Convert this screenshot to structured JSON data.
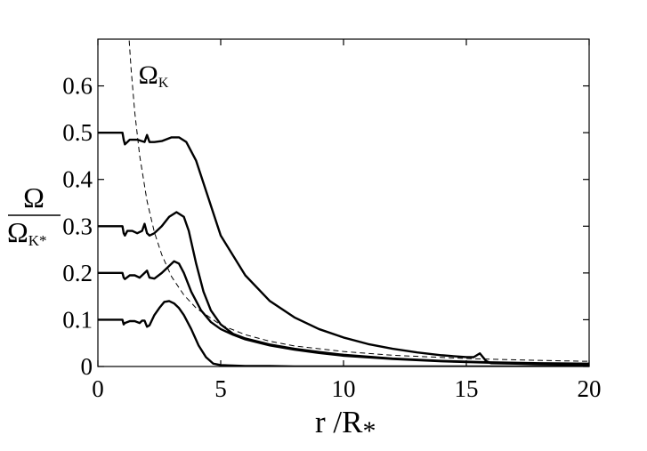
{
  "chart_data": {
    "type": "line",
    "title": "",
    "xlabel": "r /R",
    "xlabel_sub": "*",
    "ylabel_numerator": "Ω",
    "ylabel_denominator": "Ω",
    "ylabel_denominator_sub": "K*",
    "xlim": [
      0,
      20
    ],
    "ylim": [
      0,
      0.7
    ],
    "xticks": [
      "0",
      "5",
      "10",
      "15",
      "20"
    ],
    "yticks": [
      "0",
      "0.1",
      "0.2",
      "0.3",
      "0.4",
      "0.5",
      "0.6"
    ],
    "grid": false,
    "annotation": {
      "text": "Ω",
      "sub": "K",
      "x": 1.65,
      "y": 0.605
    },
    "series": [
      {
        "name": "",
        "style": "solid",
        "x": [
          0,
          1.0,
          1.05,
          1.1,
          1.2,
          1.3,
          1.6,
          1.9,
          2.0,
          2.1,
          2.3,
          2.6,
          3.0,
          3.3,
          3.6,
          4.0,
          4.5,
          5.0,
          6.0,
          7.0,
          8.0,
          9.0,
          10.0,
          11.0,
          12.0,
          13.0,
          14.0,
          15.0,
          15.3,
          15.55,
          15.8,
          16.0,
          17.0,
          18.0,
          19.0,
          20.0
        ],
        "y": [
          0.5,
          0.5,
          0.485,
          0.475,
          0.48,
          0.485,
          0.485,
          0.48,
          0.495,
          0.48,
          0.48,
          0.482,
          0.49,
          0.49,
          0.48,
          0.44,
          0.36,
          0.28,
          0.195,
          0.14,
          0.105,
          0.08,
          0.062,
          0.048,
          0.038,
          0.03,
          0.024,
          0.02,
          0.02,
          0.028,
          0.012,
          0.007,
          0.006,
          0.005,
          0.004,
          0.004
        ]
      },
      {
        "name": "",
        "style": "solid",
        "x": [
          0,
          1.0,
          1.05,
          1.1,
          1.2,
          1.4,
          1.6,
          1.8,
          1.9,
          2.0,
          2.1,
          2.3,
          2.6,
          2.9,
          3.2,
          3.5,
          3.7,
          4.0,
          4.3,
          4.6,
          5.0,
          5.5,
          6.0,
          7.0,
          8.0,
          9.0,
          10.0,
          12.0,
          14.0,
          16.0,
          18.0,
          20.0
        ],
        "y": [
          0.3,
          0.3,
          0.285,
          0.28,
          0.29,
          0.29,
          0.285,
          0.29,
          0.305,
          0.285,
          0.28,
          0.285,
          0.3,
          0.32,
          0.33,
          0.32,
          0.29,
          0.22,
          0.16,
          0.12,
          0.09,
          0.07,
          0.06,
          0.047,
          0.038,
          0.031,
          0.025,
          0.017,
          0.012,
          0.009,
          0.007,
          0.006
        ]
      },
      {
        "name": "",
        "style": "solid",
        "x": [
          0,
          1.0,
          1.05,
          1.1,
          1.3,
          1.5,
          1.7,
          1.9,
          2.0,
          2.1,
          2.3,
          2.6,
          2.9,
          3.1,
          3.3,
          3.5,
          3.8,
          4.2,
          4.6,
          5.0,
          5.5,
          6.0,
          7.0,
          8.0,
          9.0,
          10.0,
          12.0,
          14.0,
          16.0,
          18.0,
          20.0
        ],
        "y": [
          0.2,
          0.2,
          0.19,
          0.187,
          0.195,
          0.195,
          0.19,
          0.2,
          0.205,
          0.19,
          0.188,
          0.2,
          0.215,
          0.225,
          0.22,
          0.2,
          0.16,
          0.12,
          0.095,
          0.08,
          0.068,
          0.058,
          0.045,
          0.036,
          0.029,
          0.023,
          0.016,
          0.011,
          0.008,
          0.006,
          0.005
        ]
      },
      {
        "name": "",
        "style": "solid",
        "x": [
          0,
          1.0,
          1.05,
          1.1,
          1.3,
          1.5,
          1.7,
          1.8,
          1.9,
          2.0,
          2.1,
          2.3,
          2.5,
          2.7,
          2.9,
          3.1,
          3.3,
          3.5,
          3.8,
          4.1,
          4.4,
          4.7,
          5.0,
          5.5,
          6.0,
          7.0,
          8.0,
          10.0,
          12.0,
          15.0,
          20.0
        ],
        "y": [
          0.1,
          0.1,
          0.09,
          0.093,
          0.097,
          0.097,
          0.093,
          0.098,
          0.098,
          0.085,
          0.088,
          0.11,
          0.125,
          0.138,
          0.14,
          0.135,
          0.125,
          0.11,
          0.08,
          0.045,
          0.02,
          0.006,
          0.003,
          0.002,
          0.001,
          0.001,
          0.0,
          0.0,
          0.0,
          0.0,
          0.0
        ]
      },
      {
        "name": "",
        "style": "dashed",
        "function": "x^-1.5",
        "x": [
          1.25,
          1.35,
          1.5,
          1.7,
          2.0,
          2.3,
          2.6,
          3.0,
          3.5,
          4.0,
          5.0,
          6.0,
          7.0,
          8.0,
          10.0,
          12.0,
          15.0,
          18.0,
          20.0
        ],
        "y": [
          0.716,
          0.637,
          0.544,
          0.451,
          0.354,
          0.287,
          0.239,
          0.192,
          0.153,
          0.125,
          0.089,
          0.068,
          0.054,
          0.044,
          0.032,
          0.024,
          0.017,
          0.013,
          0.011
        ]
      }
    ]
  }
}
